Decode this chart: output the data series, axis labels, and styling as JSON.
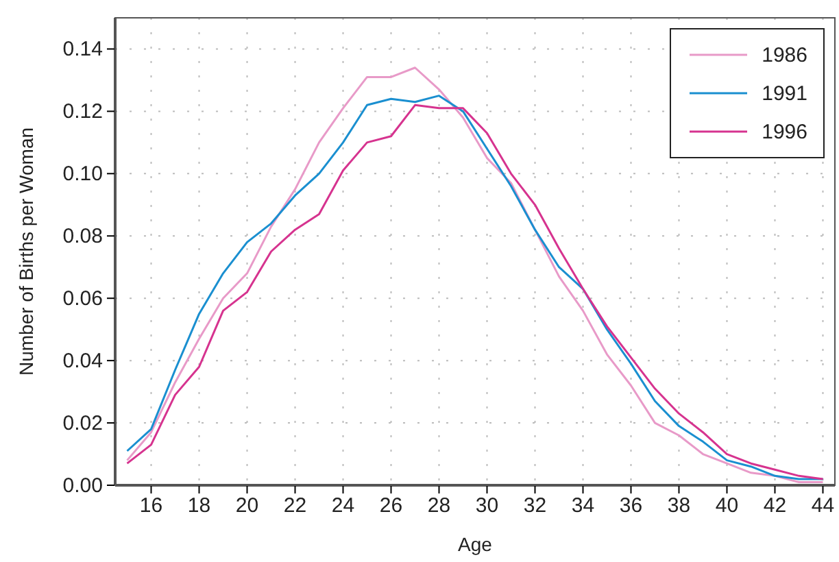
{
  "chart_data": {
    "type": "line",
    "xlabel": "Age",
    "ylabel": "Number of Births per Woman",
    "x": [
      15,
      16,
      17,
      18,
      19,
      20,
      21,
      22,
      23,
      24,
      25,
      26,
      27,
      28,
      29,
      30,
      31,
      32,
      33,
      34,
      35,
      36,
      37,
      38,
      39,
      40,
      41,
      42,
      43,
      44
    ],
    "series": [
      {
        "name": "1986",
        "color": "#e89ac8",
        "values": [
          0.008,
          0.017,
          0.033,
          0.047,
          0.06,
          0.068,
          0.083,
          0.095,
          0.11,
          0.121,
          0.131,
          0.131,
          0.134,
          0.127,
          0.118,
          0.105,
          0.097,
          0.082,
          0.067,
          0.056,
          0.042,
          0.032,
          0.02,
          0.016,
          0.01,
          0.007,
          0.004,
          0.003,
          0.001,
          0.001
        ]
      },
      {
        "name": "1991",
        "color": "#1a8fd0",
        "values": [
          0.011,
          0.018,
          0.037,
          0.055,
          0.068,
          0.078,
          0.084,
          0.093,
          0.1,
          0.11,
          0.122,
          0.124,
          0.123,
          0.125,
          0.12,
          0.108,
          0.096,
          0.082,
          0.07,
          0.063,
          0.05,
          0.039,
          0.027,
          0.019,
          0.014,
          0.008,
          0.006,
          0.003,
          0.002,
          0.002
        ]
      },
      {
        "name": "1996",
        "color": "#d6338f",
        "values": [
          0.007,
          0.013,
          0.029,
          0.038,
          0.056,
          0.062,
          0.075,
          0.082,
          0.087,
          0.101,
          0.11,
          0.112,
          0.122,
          0.121,
          0.121,
          0.113,
          0.1,
          0.09,
          0.076,
          0.063,
          0.051,
          0.041,
          0.031,
          0.023,
          0.017,
          0.01,
          0.007,
          0.005,
          0.003,
          0.002
        ]
      }
    ],
    "xlim": [
      14.5,
      44.5
    ],
    "xticks": [
      16,
      18,
      20,
      22,
      24,
      26,
      28,
      30,
      32,
      34,
      36,
      38,
      40,
      42,
      44
    ],
    "ylim": [
      0,
      0.15
    ],
    "yticks": [
      {
        "value": 0,
        "label": "0.00"
      },
      {
        "value": 0.02,
        "label": "0.02"
      },
      {
        "value": 0.04,
        "label": "0.04"
      },
      {
        "value": 0.06,
        "label": "0.06"
      },
      {
        "value": 0.08,
        "label": "0.08"
      },
      {
        "value": 0.1,
        "label": "0.10"
      },
      {
        "value": 0.12,
        "label": "0.12"
      },
      {
        "value": 0.14,
        "label": "0.14"
      }
    ],
    "grid": true,
    "legend": "top right",
    "marker": "none",
    "line_style": "solid"
  }
}
